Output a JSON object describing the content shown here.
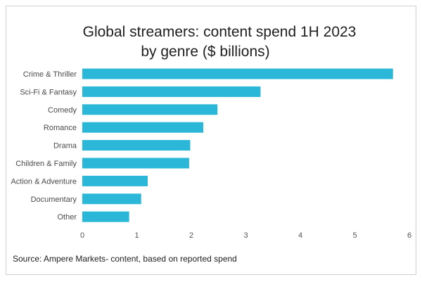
{
  "chart_data": {
    "type": "bar",
    "orientation": "horizontal",
    "title": "Global streamers: content spend 1H 2023",
    "subtitle": "by genre ($ billions)",
    "categories": [
      "Crime & Thriller",
      "Sci-Fi & Fantasy",
      "Comedy",
      "Romance",
      "Drama",
      "Children & Family",
      "Action & Adventure",
      "Documentary",
      "Other"
    ],
    "values": [
      5.7,
      3.27,
      2.48,
      2.22,
      1.98,
      1.96,
      1.2,
      1.08,
      0.86
    ],
    "xlim": [
      0,
      6
    ],
    "xticks": [
      "0",
      "1",
      "2",
      "3",
      "4",
      "5",
      "6"
    ],
    "grid": false,
    "legend": "none",
    "bar_color": "#2bb8d8",
    "source": "Source: Ampere Markets- content, based on reported spend"
  }
}
